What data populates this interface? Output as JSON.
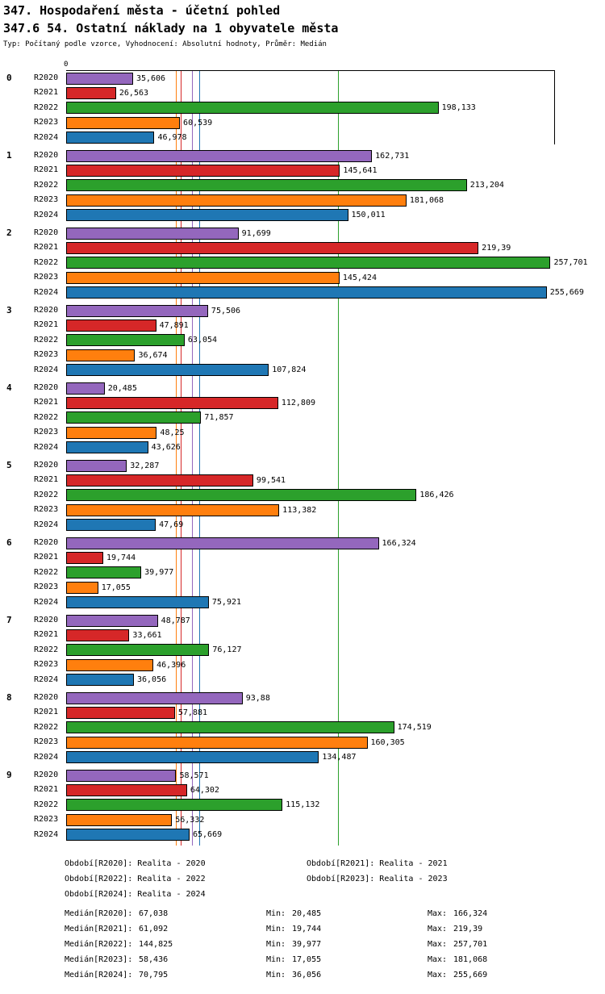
{
  "chart_data": {
    "type": "bar",
    "orientation": "horizontal",
    "title": "347. Hospodaření města - účetní pohled",
    "subtitle": "347.6 54. Ostatní náklady na 1 obyvatele města",
    "note": "Typ: Počítaný podle vzorce, Vyhodnocení: Absolutní hodnoty, Průměr: Medián",
    "x_axis": {
      "origin_label": "0",
      "min": 0,
      "max": 258.5,
      "grid": false
    },
    "series": [
      {
        "name": "R2020",
        "color": "#9467bd"
      },
      {
        "name": "R2021",
        "color": "#d62728"
      },
      {
        "name": "R2022",
        "color": "#2ca02c"
      },
      {
        "name": "R2023",
        "color": "#ff7f0e"
      },
      {
        "name": "R2024",
        "color": "#1f77b4"
      }
    ],
    "groups": [
      {
        "label": "0",
        "values": [
          "35,606",
          "26,563",
          "198,133",
          "60,539",
          "46,978"
        ]
      },
      {
        "label": "1",
        "values": [
          "162,731",
          "145,641",
          "213,204",
          "181,068",
          "150,011"
        ]
      },
      {
        "label": "2",
        "values": [
          "91,699",
          "219,39",
          "257,701",
          "145,424",
          "255,669"
        ]
      },
      {
        "label": "3",
        "values": [
          "75,506",
          "47,891",
          "63,054",
          "36,674",
          "107,824"
        ]
      },
      {
        "label": "4",
        "values": [
          "20,485",
          "112,809",
          "71,857",
          "48,25",
          "43,626"
        ]
      },
      {
        "label": "5",
        "values": [
          "32,287",
          "99,541",
          "186,426",
          "113,382",
          "47,69"
        ]
      },
      {
        "label": "6",
        "values": [
          "166,324",
          "19,744",
          "39,977",
          "17,055",
          "75,921"
        ]
      },
      {
        "label": "7",
        "values": [
          "48,787",
          "33,661",
          "76,127",
          "46,396",
          "36,056"
        ]
      },
      {
        "label": "8",
        "values": [
          "93,88",
          "57,881",
          "174,519",
          "160,305",
          "134,487"
        ]
      },
      {
        "label": "9",
        "values": [
          "58,571",
          "64,302",
          "115,132",
          "56,332",
          "65,669"
        ]
      }
    ],
    "median_lines": [
      "67,038",
      "61,092",
      "144,825",
      "58,436",
      "70,795"
    ],
    "legend_position": "below"
  },
  "footer": {
    "periods": [
      "Období[R2020]: Realita - 2020",
      "Období[R2021]: Realita - 2021",
      "Období[R2022]: Realita - 2022",
      "Období[R2023]: Realita - 2023",
      "Období[R2024]: Realita - 2024"
    ],
    "min_label": "Min:",
    "max_label": "Max:",
    "stats": [
      {
        "name": "Medián[R2020]:",
        "min": "20,485",
        "max": "166,324"
      },
      {
        "name": "Medián[R2021]:",
        "min": "19,744",
        "max": "219,39"
      },
      {
        "name": "Medián[R2022]:",
        "min": "39,977",
        "max": "257,701"
      },
      {
        "name": "Medián[R2023]:",
        "min": "17,055",
        "max": "181,068"
      },
      {
        "name": "Medián[R2024]:",
        "min": "36,056",
        "max": "255,669"
      }
    ]
  }
}
